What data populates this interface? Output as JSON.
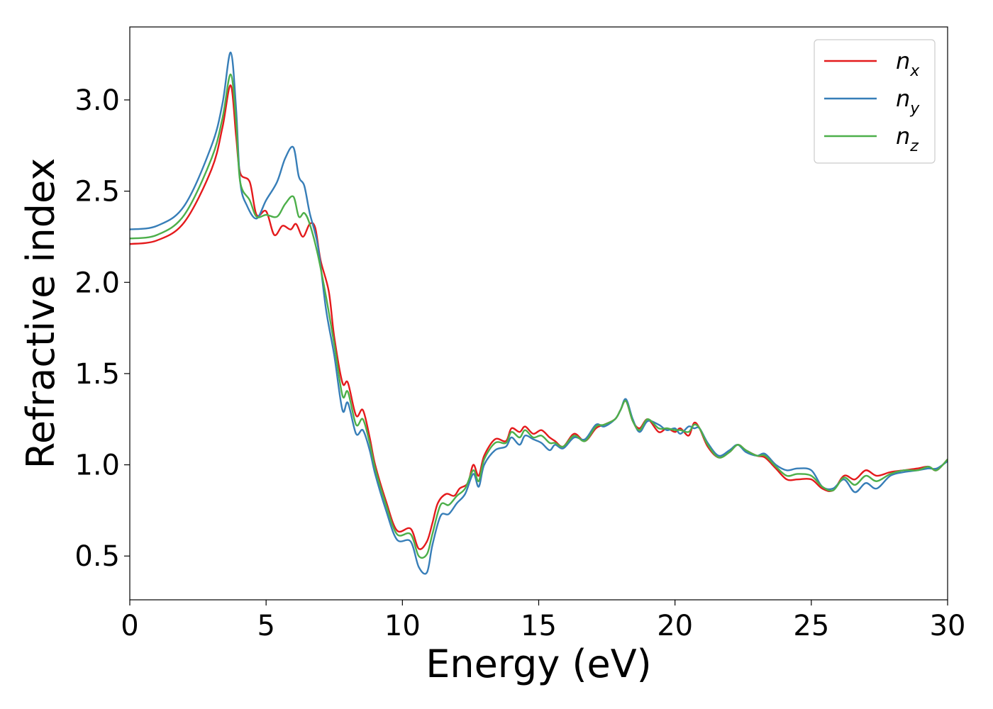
{
  "chart_data": {
    "type": "line",
    "xlabel": "Energy (eV)",
    "ylabel": "Refractive index",
    "xlim": [
      0,
      30
    ],
    "ylim": [
      0.26,
      3.4
    ],
    "xticks": [
      0,
      5,
      10,
      15,
      20,
      25,
      30
    ],
    "xtick_labels": [
      "0",
      "5",
      "10",
      "15",
      "20",
      "25",
      "30"
    ],
    "yticks": [
      0.5,
      1.0,
      1.5,
      2.0,
      2.5,
      3.0
    ],
    "ytick_labels": [
      "0.5",
      "1.0",
      "1.5",
      "2.0",
      "2.5",
      "3.0"
    ],
    "grid": false,
    "legend_position": "top-right",
    "series": [
      {
        "name": "n_x",
        "base": "n",
        "sub": "x",
        "color": "#e41a1c",
        "points": [
          [
            0,
            2.21
          ],
          [
            1,
            2.23
          ],
          [
            2,
            2.33
          ],
          [
            3,
            2.62
          ],
          [
            3.4,
            2.85
          ],
          [
            3.7,
            3.08
          ],
          [
            3.9,
            2.8
          ],
          [
            4.05,
            2.6
          ],
          [
            4.4,
            2.55
          ],
          [
            4.65,
            2.37
          ],
          [
            5.0,
            2.39
          ],
          [
            5.3,
            2.26
          ],
          [
            5.6,
            2.31
          ],
          [
            5.9,
            2.29
          ],
          [
            6.1,
            2.32
          ],
          [
            6.35,
            2.25
          ],
          [
            6.6,
            2.32
          ],
          [
            6.8,
            2.3
          ],
          [
            7.0,
            2.12
          ],
          [
            7.3,
            1.95
          ],
          [
            7.5,
            1.7
          ],
          [
            7.8,
            1.45
          ],
          [
            8.0,
            1.45
          ],
          [
            8.3,
            1.27
          ],
          [
            8.55,
            1.3
          ],
          [
            8.8,
            1.15
          ],
          [
            9.0,
            1.0
          ],
          [
            9.4,
            0.8
          ],
          [
            9.8,
            0.64
          ],
          [
            10.3,
            0.65
          ],
          [
            10.6,
            0.54
          ],
          [
            10.9,
            0.58
          ],
          [
            11.1,
            0.68
          ],
          [
            11.3,
            0.79
          ],
          [
            11.6,
            0.84
          ],
          [
            11.9,
            0.83
          ],
          [
            12.1,
            0.87
          ],
          [
            12.4,
            0.9
          ],
          [
            12.6,
            1.0
          ],
          [
            12.8,
            0.94
          ],
          [
            13.0,
            1.05
          ],
          [
            13.4,
            1.14
          ],
          [
            13.8,
            1.13
          ],
          [
            14.0,
            1.2
          ],
          [
            14.3,
            1.18
          ],
          [
            14.5,
            1.21
          ],
          [
            14.8,
            1.17
          ],
          [
            15.1,
            1.19
          ],
          [
            15.4,
            1.15
          ],
          [
            15.6,
            1.13
          ],
          [
            15.9,
            1.1
          ],
          [
            16.3,
            1.17
          ],
          [
            16.7,
            1.13
          ],
          [
            17.1,
            1.2
          ],
          [
            17.4,
            1.22
          ],
          [
            17.8,
            1.25
          ],
          [
            18.0,
            1.3
          ],
          [
            18.2,
            1.35
          ],
          [
            18.45,
            1.24
          ],
          [
            18.7,
            1.2
          ],
          [
            19.0,
            1.25
          ],
          [
            19.4,
            1.18
          ],
          [
            19.7,
            1.2
          ],
          [
            20.0,
            1.18
          ],
          [
            20.2,
            1.2
          ],
          [
            20.5,
            1.16
          ],
          [
            20.7,
            1.23
          ],
          [
            20.9,
            1.2
          ],
          [
            21.2,
            1.1
          ],
          [
            21.6,
            1.04
          ],
          [
            22.0,
            1.07
          ],
          [
            22.3,
            1.11
          ],
          [
            22.6,
            1.08
          ],
          [
            23.0,
            1.05
          ],
          [
            23.3,
            1.04
          ],
          [
            23.7,
            0.98
          ],
          [
            24.1,
            0.92
          ],
          [
            24.5,
            0.92
          ],
          [
            25.0,
            0.92
          ],
          [
            25.4,
            0.87
          ],
          [
            25.8,
            0.86
          ],
          [
            26.2,
            0.94
          ],
          [
            26.6,
            0.92
          ],
          [
            27.0,
            0.97
          ],
          [
            27.4,
            0.94
          ],
          [
            27.9,
            0.96
          ],
          [
            28.4,
            0.97
          ],
          [
            28.9,
            0.98
          ],
          [
            29.3,
            0.99
          ],
          [
            29.6,
            0.97
          ],
          [
            30,
            1.03
          ]
        ]
      },
      {
        "name": "n_y",
        "base": "n",
        "sub": "y",
        "color": "#377eb8",
        "points": [
          [
            0,
            2.29
          ],
          [
            1,
            2.31
          ],
          [
            2,
            2.42
          ],
          [
            3,
            2.75
          ],
          [
            3.4,
            2.98
          ],
          [
            3.7,
            3.26
          ],
          [
            3.9,
            2.95
          ],
          [
            4.05,
            2.55
          ],
          [
            4.3,
            2.42
          ],
          [
            4.65,
            2.35
          ],
          [
            5.0,
            2.45
          ],
          [
            5.4,
            2.55
          ],
          [
            5.7,
            2.68
          ],
          [
            6.0,
            2.74
          ],
          [
            6.2,
            2.58
          ],
          [
            6.4,
            2.53
          ],
          [
            6.6,
            2.38
          ],
          [
            6.9,
            2.2
          ],
          [
            7.2,
            1.85
          ],
          [
            7.5,
            1.6
          ],
          [
            7.8,
            1.3
          ],
          [
            8.0,
            1.34
          ],
          [
            8.3,
            1.17
          ],
          [
            8.55,
            1.19
          ],
          [
            8.8,
            1.08
          ],
          [
            9.0,
            0.95
          ],
          [
            9.4,
            0.75
          ],
          [
            9.8,
            0.59
          ],
          [
            10.3,
            0.58
          ],
          [
            10.6,
            0.44
          ],
          [
            10.9,
            0.41
          ],
          [
            11.1,
            0.56
          ],
          [
            11.4,
            0.72
          ],
          [
            11.7,
            0.73
          ],
          [
            12.0,
            0.79
          ],
          [
            12.3,
            0.84
          ],
          [
            12.6,
            0.95
          ],
          [
            12.8,
            0.88
          ],
          [
            13.0,
            1.0
          ],
          [
            13.4,
            1.08
          ],
          [
            13.8,
            1.1
          ],
          [
            14.0,
            1.15
          ],
          [
            14.3,
            1.11
          ],
          [
            14.5,
            1.16
          ],
          [
            14.8,
            1.14
          ],
          [
            15.1,
            1.12
          ],
          [
            15.4,
            1.08
          ],
          [
            15.6,
            1.11
          ],
          [
            15.9,
            1.09
          ],
          [
            16.3,
            1.15
          ],
          [
            16.7,
            1.14
          ],
          [
            17.1,
            1.22
          ],
          [
            17.4,
            1.21
          ],
          [
            17.8,
            1.25
          ],
          [
            18.0,
            1.3
          ],
          [
            18.2,
            1.36
          ],
          [
            18.45,
            1.25
          ],
          [
            18.7,
            1.18
          ],
          [
            19.0,
            1.24
          ],
          [
            19.4,
            1.22
          ],
          [
            19.7,
            1.19
          ],
          [
            20.0,
            1.2
          ],
          [
            20.2,
            1.17
          ],
          [
            20.5,
            1.21
          ],
          [
            20.7,
            1.2
          ],
          [
            20.9,
            1.2
          ],
          [
            21.2,
            1.12
          ],
          [
            21.6,
            1.05
          ],
          [
            22.0,
            1.08
          ],
          [
            22.3,
            1.11
          ],
          [
            22.6,
            1.07
          ],
          [
            23.0,
            1.05
          ],
          [
            23.3,
            1.06
          ],
          [
            23.7,
            1.0
          ],
          [
            24.1,
            0.97
          ],
          [
            24.5,
            0.98
          ],
          [
            25.0,
            0.97
          ],
          [
            25.4,
            0.88
          ],
          [
            25.8,
            0.87
          ],
          [
            26.2,
            0.92
          ],
          [
            26.6,
            0.85
          ],
          [
            27.0,
            0.9
          ],
          [
            27.4,
            0.87
          ],
          [
            27.9,
            0.94
          ],
          [
            28.4,
            0.96
          ],
          [
            28.9,
            0.97
          ],
          [
            29.3,
            0.98
          ],
          [
            29.6,
            0.98
          ],
          [
            30,
            1.02
          ]
        ]
      },
      {
        "name": "n_z",
        "base": "n",
        "sub": "z",
        "color": "#4daf4a",
        "points": [
          [
            0,
            2.24
          ],
          [
            1,
            2.26
          ],
          [
            2,
            2.37
          ],
          [
            3,
            2.68
          ],
          [
            3.4,
            2.9
          ],
          [
            3.7,
            3.14
          ],
          [
            3.9,
            2.88
          ],
          [
            4.05,
            2.55
          ],
          [
            4.4,
            2.45
          ],
          [
            4.65,
            2.36
          ],
          [
            5.0,
            2.37
          ],
          [
            5.4,
            2.36
          ],
          [
            5.7,
            2.43
          ],
          [
            6.0,
            2.47
          ],
          [
            6.2,
            2.36
          ],
          [
            6.4,
            2.38
          ],
          [
            6.6,
            2.32
          ],
          [
            6.9,
            2.15
          ],
          [
            7.2,
            1.92
          ],
          [
            7.5,
            1.66
          ],
          [
            7.8,
            1.38
          ],
          [
            8.0,
            1.4
          ],
          [
            8.3,
            1.22
          ],
          [
            8.55,
            1.25
          ],
          [
            8.8,
            1.12
          ],
          [
            9.0,
            0.98
          ],
          [
            9.4,
            0.78
          ],
          [
            9.8,
            0.62
          ],
          [
            10.3,
            0.62
          ],
          [
            10.6,
            0.5
          ],
          [
            10.9,
            0.51
          ],
          [
            11.1,
            0.62
          ],
          [
            11.4,
            0.78
          ],
          [
            11.7,
            0.78
          ],
          [
            12.0,
            0.83
          ],
          [
            12.3,
            0.87
          ],
          [
            12.6,
            0.97
          ],
          [
            12.8,
            0.91
          ],
          [
            13.0,
            1.03
          ],
          [
            13.4,
            1.12
          ],
          [
            13.8,
            1.12
          ],
          [
            14.0,
            1.18
          ],
          [
            14.3,
            1.15
          ],
          [
            14.5,
            1.19
          ],
          [
            14.8,
            1.15
          ],
          [
            15.1,
            1.16
          ],
          [
            15.4,
            1.12
          ],
          [
            15.6,
            1.12
          ],
          [
            15.9,
            1.1
          ],
          [
            16.3,
            1.16
          ],
          [
            16.7,
            1.13
          ],
          [
            17.1,
            1.21
          ],
          [
            17.4,
            1.22
          ],
          [
            17.8,
            1.25
          ],
          [
            18.0,
            1.3
          ],
          [
            18.2,
            1.35
          ],
          [
            18.45,
            1.24
          ],
          [
            18.7,
            1.19
          ],
          [
            19.0,
            1.25
          ],
          [
            19.4,
            1.2
          ],
          [
            19.7,
            1.2
          ],
          [
            20.0,
            1.19
          ],
          [
            20.2,
            1.19
          ],
          [
            20.5,
            1.18
          ],
          [
            20.7,
            1.22
          ],
          [
            20.9,
            1.2
          ],
          [
            21.2,
            1.11
          ],
          [
            21.6,
            1.04
          ],
          [
            22.0,
            1.07
          ],
          [
            22.3,
            1.11
          ],
          [
            22.6,
            1.08
          ],
          [
            23.0,
            1.05
          ],
          [
            23.3,
            1.05
          ],
          [
            23.7,
            0.99
          ],
          [
            24.1,
            0.94
          ],
          [
            24.5,
            0.95
          ],
          [
            25.0,
            0.94
          ],
          [
            25.4,
            0.88
          ],
          [
            25.8,
            0.86
          ],
          [
            26.2,
            0.93
          ],
          [
            26.6,
            0.89
          ],
          [
            27.0,
            0.94
          ],
          [
            27.4,
            0.91
          ],
          [
            27.9,
            0.95
          ],
          [
            28.4,
            0.97
          ],
          [
            28.9,
            0.97
          ],
          [
            29.3,
            0.99
          ],
          [
            29.6,
            0.97
          ],
          [
            30,
            1.03
          ]
        ]
      }
    ]
  }
}
